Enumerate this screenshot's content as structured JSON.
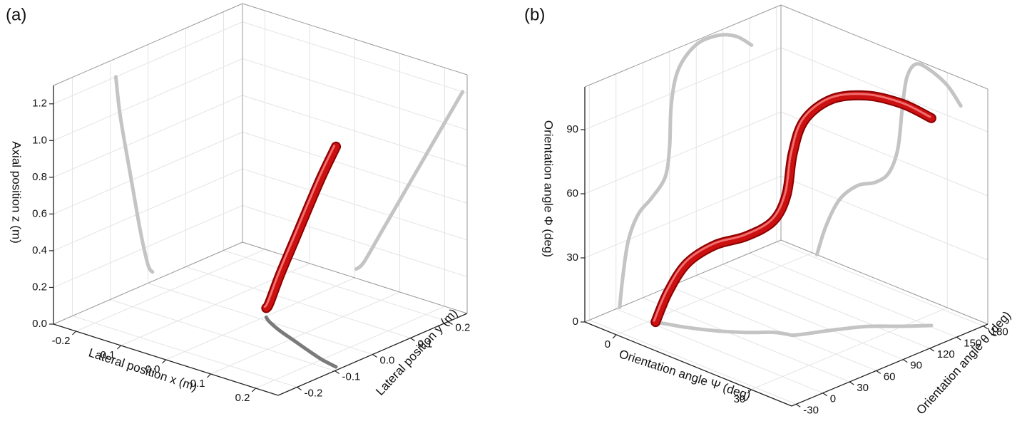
{
  "chart_data": [
    {
      "type": "line3d",
      "panel_label": "(a)",
      "xlabel": "Lateral position x (m)",
      "ylabel": "Lateral position y (m)",
      "zlabel": "Axial position z (m)",
      "xlim": [
        -0.25,
        0.25
      ],
      "xticks": [
        -0.2,
        -0.1,
        {
          "value": 0,
          "label": "0.0"
        },
        0.1,
        0.2
      ],
      "ylim": [
        -0.25,
        0.25
      ],
      "yticks": [
        -0.2,
        -0.1,
        {
          "value": 0,
          "label": "0.0"
        },
        0.1,
        0.2
      ],
      "zlim": [
        0,
        1.3
      ],
      "zticks": [
        {
          "value": 0,
          "label": "0.0"
        },
        0.2,
        0.4,
        0.6,
        0.8,
        {
          "value": 1,
          "label": "1.0"
        },
        1.2
      ],
      "grid": true,
      "projection_color": "#c4c4c4",
      "floor_projection_color": "#7a7a7a",
      "series": [
        {
          "color": "#cc1010",
          "x": [
            0.003,
            0.02,
            0.06,
            0.11,
            0.16,
            0.2,
            0.24
          ],
          "y": [
            0.012,
            0.0,
            -0.02,
            -0.04,
            -0.06,
            -0.075,
            -0.085
          ],
          "z": [
            0.05,
            0.1,
            0.3,
            0.55,
            0.8,
            1.0,
            1.2
          ]
        }
      ]
    },
    {
      "type": "line3d",
      "panel_label": "(b)",
      "xlabel": "Orientation angle Ψ (deg)",
      "ylabel": "Orientation angle θ (deg)",
      "zlabel": "Orientation angle Φ (deg)",
      "xlim": [
        -7,
        39
      ],
      "xticks": [
        0,
        30
      ],
      "ylim": [
        -35,
        185
      ],
      "yticks": [
        -30,
        0,
        30,
        60,
        90,
        120,
        150,
        180
      ],
      "zlim": [
        0,
        110
      ],
      "zticks": [
        0,
        30,
        60,
        90
      ],
      "grid": true,
      "projection_color": "#c4c4c4",
      "floor_projection_color": "#c4c4c4",
      "series": [
        {
          "color": "#cc1010",
          "x": [
            1,
            3,
            6,
            10,
            14,
            17,
            19,
            20,
            21,
            23,
            26,
            30,
            33
          ],
          "y": [
            4,
            8,
            14,
            25,
            40,
            55,
            60,
            62,
            70,
            90,
            115,
            135,
            152
          ],
          "z": [
            0,
            15,
            30,
            40,
            45,
            52,
            65,
            85,
            100,
            108,
            108,
            104,
            97
          ]
        }
      ]
    }
  ]
}
